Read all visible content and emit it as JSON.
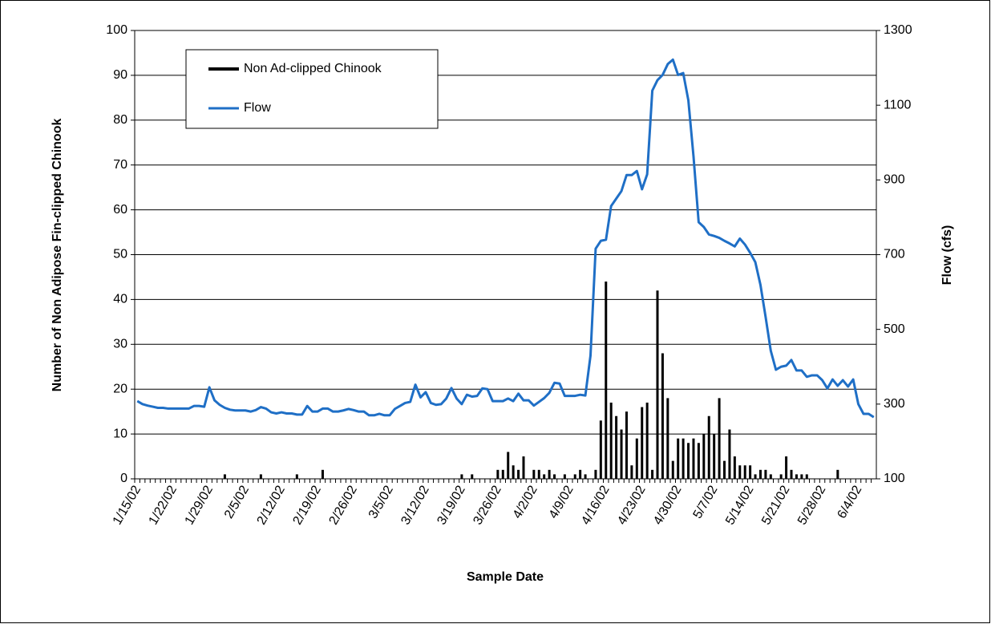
{
  "chart_data": {
    "type": "bar",
    "x_label": "Sample Date",
    "y_label": "Number of Non Adipose Fin-clipped Chinook",
    "y2_label": "Flow (cfs)",
    "categories": [
      "1/15/02",
      null,
      null,
      null,
      null,
      null,
      null,
      "1/22/02",
      null,
      null,
      null,
      null,
      null,
      null,
      "1/29/02",
      null,
      null,
      null,
      null,
      null,
      null,
      "2/5/02",
      null,
      null,
      null,
      null,
      null,
      null,
      "2/12/02",
      null,
      null,
      null,
      null,
      null,
      null,
      "2/19/02",
      null,
      null,
      null,
      null,
      null,
      null,
      "2/26/02",
      null,
      null,
      null,
      null,
      null,
      null,
      "3/5/02",
      null,
      null,
      null,
      null,
      null,
      null,
      "3/12/02",
      null,
      null,
      null,
      null,
      null,
      null,
      "3/19/02",
      null,
      null,
      null,
      null,
      null,
      null,
      "3/26/02",
      null,
      null,
      null,
      null,
      null,
      null,
      "4/2/02",
      null,
      null,
      null,
      null,
      null,
      null,
      "4/9/02",
      null,
      null,
      null,
      null,
      null,
      null,
      "4/16/02",
      null,
      null,
      null,
      null,
      null,
      null,
      "4/23/02",
      null,
      null,
      null,
      null,
      null,
      null,
      "4/30/02",
      null,
      null,
      null,
      null,
      null,
      null,
      "5/7/02",
      null,
      null,
      null,
      null,
      null,
      null,
      "5/14/02",
      null,
      null,
      null,
      null,
      null,
      null,
      "5/21/02",
      null,
      null,
      null,
      null,
      null,
      null,
      "5/28/02",
      null,
      null,
      null,
      null,
      null,
      null,
      "6/4/02",
      null,
      null,
      null
    ],
    "series": [
      {
        "name": "Non Ad-clipped Chinook",
        "type": "bar",
        "color": "#000000",
        "values": [
          0,
          0,
          0,
          0,
          0,
          0,
          0,
          0,
          0,
          0,
          0,
          0,
          0,
          0,
          0,
          0,
          0,
          1,
          0,
          0,
          0,
          0,
          0,
          0,
          1,
          0,
          0,
          0,
          0,
          0,
          0,
          1,
          0,
          0,
          0,
          0,
          2,
          0,
          0,
          0,
          0,
          0,
          0,
          0,
          0,
          0,
          0,
          0,
          0,
          0,
          0,
          0,
          0,
          0,
          0,
          0,
          0,
          0,
          0,
          0,
          0,
          0,
          0,
          1,
          0,
          1,
          0,
          0,
          0,
          0,
          2,
          2,
          6,
          3,
          2,
          5,
          0,
          2,
          2,
          1,
          2,
          1,
          0,
          1,
          0,
          1,
          2,
          1,
          0,
          2,
          13,
          44,
          17,
          14,
          11,
          15,
          3,
          9,
          16,
          17,
          2,
          42,
          28,
          18,
          4,
          9,
          9,
          8,
          9,
          8,
          10,
          14,
          10,
          18,
          4,
          11,
          5,
          3,
          3,
          3,
          1,
          2,
          2,
          1,
          0,
          1,
          5,
          2,
          1,
          1,
          1,
          0,
          0,
          0,
          0,
          0,
          2,
          0,
          0,
          0,
          0,
          0,
          0,
          0
        ]
      },
      {
        "name": "Flow",
        "type": "line",
        "axis": "y2",
        "color": "#1f6fc6",
        "values": [
          308,
          300,
          296,
          293,
          290,
          290,
          288,
          288,
          288,
          288,
          288,
          295,
          295,
          293,
          345,
          310,
          298,
          290,
          285,
          283,
          283,
          283,
          280,
          284,
          292,
          288,
          278,
          275,
          278,
          275,
          275,
          272,
          272,
          295,
          280,
          280,
          288,
          288,
          280,
          280,
          283,
          287,
          284,
          280,
          280,
          270,
          270,
          274,
          270,
          270,
          287,
          295,
          303,
          306,
          352,
          318,
          332,
          303,
          298,
          300,
          315,
          343,
          315,
          300,
          325,
          320,
          322,
          342,
          340,
          308,
          308,
          308,
          315,
          308,
          328,
          310,
          310,
          296,
          306,
          316,
          330,
          357,
          355,
          322,
          322,
          322,
          325,
          323,
          430,
          716,
          737,
          740,
          830,
          850,
          870,
          913,
          913,
          924,
          875,
          915,
          1139,
          1167,
          1181,
          1210,
          1222,
          1181,
          1186,
          1113,
          963,
          787,
          774,
          754,
          750,
          745,
          737,
          730,
          722,
          743,
          727,
          705,
          680,
          619,
          533,
          443,
          392,
          400,
          403,
          418,
          390,
          390,
          373,
          377,
          377,
          364,
          342,
          366,
          349,
          364,
          347,
          366,
          300,
          274,
          274,
          265
        ]
      }
    ],
    "ylim": [
      0,
      100
    ],
    "yticks": [
      0,
      10,
      20,
      30,
      40,
      50,
      60,
      70,
      80,
      90,
      100
    ],
    "y2lim": [
      100,
      1300
    ],
    "y2ticks": [
      100,
      300,
      500,
      700,
      900,
      1100,
      1300
    ],
    "grid": true,
    "legend": "top-left"
  }
}
